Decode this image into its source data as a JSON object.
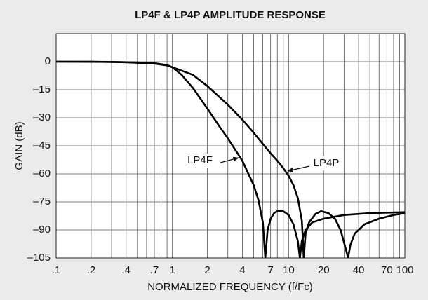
{
  "chart_data": {
    "type": "line",
    "title": "LP4F & LP4P AMPLITUDE RESPONSE",
    "xlabel": "NORMALIZED FREQUENCY (f/Fc)",
    "ylabel": "GAIN (dB)",
    "xscale": "log",
    "xlim": [
      0.1,
      100
    ],
    "ylim": [
      -105,
      15
    ],
    "xticks": [
      {
        "value": 0.1,
        "label": ".1"
      },
      {
        "value": 0.2,
        "label": ".2"
      },
      {
        "value": 0.4,
        "label": ".4"
      },
      {
        "value": 0.7,
        "label": ".7"
      },
      1,
      2,
      4,
      7,
      10,
      20,
      40,
      70,
      100
    ],
    "xgrid_minor": [
      0.3,
      0.5,
      0.6,
      0.8,
      0.9,
      3,
      5,
      6,
      8,
      9,
      30,
      50,
      60,
      80,
      90
    ],
    "yticks": [
      0,
      {
        "value": -15,
        "label": "–15"
      },
      {
        "value": -30,
        "label": "–30"
      },
      {
        "value": -45,
        "label": "–45"
      },
      {
        "value": -60,
        "label": "–60"
      },
      {
        "value": -75,
        "label": "–75"
      },
      {
        "value": -90,
        "label": "–90"
      },
      {
        "value": -105,
        "label": "–105"
      }
    ],
    "grid": true,
    "series": [
      {
        "name": "LP4F",
        "color": "#000000",
        "x": [
          0.1,
          0.2,
          0.4,
          0.7,
          0.9,
          1,
          1.2,
          1.5,
          2,
          2.5,
          3,
          4,
          5,
          5.5,
          6,
          6.3,
          6.6,
          7,
          7.5,
          8,
          8.5,
          9,
          10,
          11,
          12,
          12.5,
          13,
          14,
          16,
          20,
          30,
          50,
          100
        ],
        "values": [
          0,
          0,
          -0.3,
          -1,
          -2,
          -3,
          -7,
          -14,
          -25,
          -34,
          -41,
          -53,
          -66,
          -74,
          -86,
          -105,
          -90,
          -84,
          -81,
          -80,
          -79.8,
          -80,
          -82,
          -87,
          -96,
          -105,
          -96,
          -90,
          -86,
          -84,
          -82,
          -81,
          -80.5
        ]
      },
      {
        "name": "LP4P",
        "color": "#000000",
        "x": [
          0.1,
          0.3,
          0.5,
          0.7,
          0.9,
          1,
          1.5,
          2,
          3,
          4,
          5,
          6,
          7,
          8,
          9,
          10,
          11,
          12,
          13,
          13.5,
          14,
          15,
          17,
          19,
          22,
          25,
          28,
          31,
          32.5,
          34,
          37,
          45,
          60,
          80,
          100
        ],
        "values": [
          0,
          -0.1,
          -0.4,
          -0.8,
          -1.8,
          -3,
          -7,
          -13,
          -23,
          -31,
          -38,
          -44,
          -49,
          -53,
          -57,
          -61,
          -66,
          -73,
          -85,
          -105,
          -92,
          -86,
          -81.5,
          -80,
          -81,
          -84,
          -90,
          -100,
          -105,
          -98,
          -92,
          -87,
          -84,
          -82,
          -81
        ]
      }
    ]
  }
}
